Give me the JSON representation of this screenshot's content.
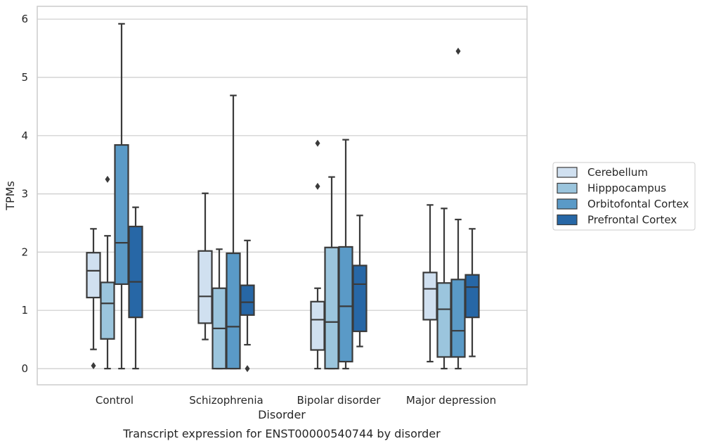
{
  "chart_data": {
    "type": "box",
    "xlabel": "Disorder",
    "ylabel": "TPMs",
    "caption": "Transcript expression for ENST00000540744 by disorder",
    "ylim": [
      -0.28,
      6.22
    ],
    "yticks": [
      0,
      1,
      2,
      3,
      4,
      5,
      6
    ],
    "grid": true,
    "legend_position": "right",
    "categories": [
      "Control",
      "Schizophrenia",
      "Bipolar disorder",
      "Major depression"
    ],
    "series": [
      {
        "name": "Cerebellum",
        "color": "#d0e0f0",
        "boxes": [
          {
            "whisker_low": 0.33,
            "q1": 1.22,
            "median": 1.68,
            "q3": 1.99,
            "whisker_high": 2.4,
            "outliers": [
              0.05
            ]
          },
          {
            "whisker_low": 0.5,
            "q1": 0.78,
            "median": 1.24,
            "q3": 2.02,
            "whisker_high": 3.01,
            "outliers": []
          },
          {
            "whisker_low": 0.0,
            "q1": 0.32,
            "median": 0.84,
            "q3": 1.15,
            "whisker_high": 1.38,
            "outliers": [
              3.13,
              3.87
            ]
          },
          {
            "whisker_low": 0.12,
            "q1": 0.84,
            "median": 1.37,
            "q3": 1.65,
            "whisker_high": 2.81,
            "outliers": []
          }
        ]
      },
      {
        "name": "Hipppocampus",
        "color": "#9bc5dd",
        "boxes": [
          {
            "whisker_low": 0.0,
            "q1": 0.51,
            "median": 1.12,
            "q3": 1.48,
            "whisker_high": 2.28,
            "outliers": [
              3.25
            ]
          },
          {
            "whisker_low": 0.0,
            "q1": 0.0,
            "median": 0.69,
            "q3": 1.38,
            "whisker_high": 2.05,
            "outliers": []
          },
          {
            "whisker_low": 0.0,
            "q1": 0.0,
            "median": 0.8,
            "q3": 2.08,
            "whisker_high": 3.29,
            "outliers": []
          },
          {
            "whisker_low": 0.0,
            "q1": 0.2,
            "median": 1.02,
            "q3": 1.47,
            "whisker_high": 2.75,
            "outliers": []
          }
        ]
      },
      {
        "name": "Orbitofontal Cortex",
        "color": "#5a9ac7",
        "boxes": [
          {
            "whisker_low": 0.0,
            "q1": 1.45,
            "median": 2.16,
            "q3": 3.84,
            "whisker_high": 5.92,
            "outliers": []
          },
          {
            "whisker_low": 0.0,
            "q1": 0.0,
            "median": 0.72,
            "q3": 1.98,
            "whisker_high": 4.69,
            "outliers": []
          },
          {
            "whisker_low": 0.0,
            "q1": 0.12,
            "median": 1.07,
            "q3": 2.09,
            "whisker_high": 3.93,
            "outliers": []
          },
          {
            "whisker_low": 0.0,
            "q1": 0.2,
            "median": 0.65,
            "q3": 1.53,
            "whisker_high": 2.56,
            "outliers": [
              5.45
            ]
          }
        ]
      },
      {
        "name": "Prefrontal Cortex",
        "color": "#2767a6",
        "boxes": [
          {
            "whisker_low": 0.0,
            "q1": 0.88,
            "median": 1.49,
            "q3": 2.44,
            "whisker_high": 2.77,
            "outliers": []
          },
          {
            "whisker_low": 0.41,
            "q1": 0.92,
            "median": 1.14,
            "q3": 1.43,
            "whisker_high": 2.2,
            "outliers": [
              0.0
            ]
          },
          {
            "whisker_low": 0.38,
            "q1": 0.64,
            "median": 1.45,
            "q3": 1.77,
            "whisker_high": 2.63,
            "outliers": []
          },
          {
            "whisker_low": 0.21,
            "q1": 0.88,
            "median": 1.4,
            "q3": 1.61,
            "whisker_high": 2.4,
            "outliers": []
          }
        ]
      }
    ]
  }
}
